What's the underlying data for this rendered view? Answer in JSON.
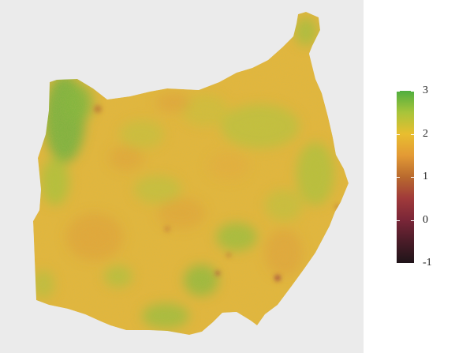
{
  "map": {
    "fill_color_base": "#e6b73a",
    "background": "#ebebeb"
  },
  "legend": {
    "scale_min": -1,
    "scale_max": 3,
    "ticks": [
      {
        "value": 3,
        "label": "3"
      },
      {
        "value": 2,
        "label": "2"
      },
      {
        "value": 1,
        "label": "1"
      },
      {
        "value": 0,
        "label": "0"
      },
      {
        "value": -1,
        "label": "-1"
      }
    ],
    "gradient_stops": [
      {
        "value": 3,
        "color": "#4fae3f"
      },
      {
        "value": 2.5,
        "color": "#a8c43a"
      },
      {
        "value": 2,
        "color": "#e8be2f"
      },
      {
        "value": 1.5,
        "color": "#e39a35"
      },
      {
        "value": 1,
        "color": "#b96a2e"
      },
      {
        "value": 0.5,
        "color": "#a03a3a"
      },
      {
        "value": 0,
        "color": "#7a2638"
      },
      {
        "value": -0.5,
        "color": "#4a1c28"
      },
      {
        "value": -1,
        "color": "#1f1419"
      }
    ]
  }
}
